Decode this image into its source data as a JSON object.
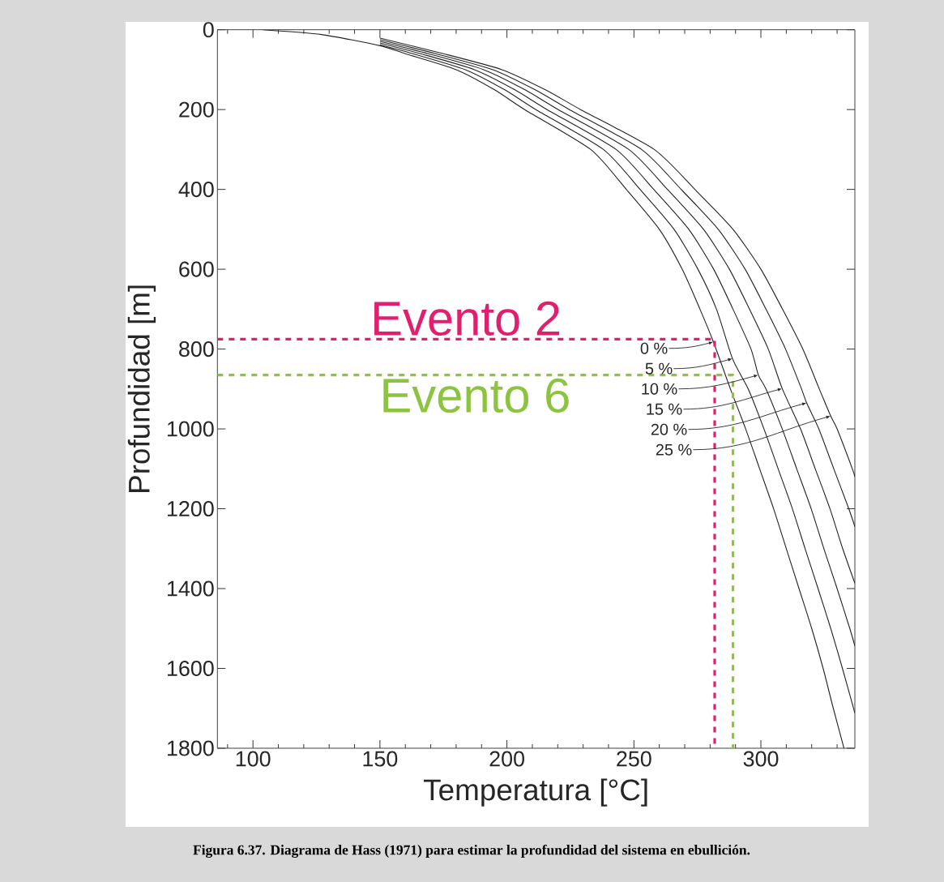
{
  "chart_data": {
    "type": "line",
    "xlabel": "Temperatura [°C]",
    "ylabel": "Profundidad [m]",
    "xlim": [
      86,
      337
    ],
    "ylim": [
      1800,
      0
    ],
    "xticks": [
      {
        "value": 90,
        "label": null
      },
      100,
      {
        "value": 110,
        "label": null
      },
      {
        "value": 120,
        "label": null
      },
      {
        "value": 130,
        "label": null
      },
      {
        "value": 140,
        "label": null
      },
      150,
      {
        "value": 160,
        "label": null
      },
      {
        "value": 170,
        "label": null
      },
      {
        "value": 180,
        "label": null
      },
      {
        "value": 190,
        "label": null
      },
      200,
      {
        "value": 210,
        "label": null
      },
      {
        "value": 220,
        "label": null
      },
      {
        "value": 230,
        "label": null
      },
      {
        "value": 240,
        "label": null
      },
      250,
      {
        "value": 260,
        "label": null
      },
      {
        "value": 270,
        "label": null
      },
      {
        "value": 280,
        "label": null
      },
      {
        "value": 290,
        "label": null
      },
      300,
      {
        "value": 310,
        "label": null
      },
      {
        "value": 320,
        "label": null
      },
      {
        "value": 330,
        "label": null
      }
    ],
    "yticks": [
      0,
      200,
      400,
      600,
      800,
      1000,
      1200,
      1400,
      1600,
      1800
    ],
    "grid": false,
    "series": [
      {
        "color": "#222222",
        "x": [
          104,
          127,
          150,
          160,
          180,
          195,
          207,
          233,
          247,
          260,
          269,
          276,
          281.3,
          288,
          294,
          299.5,
          305,
          310,
          315,
          320,
          324.5,
          328.5,
          332.7
        ],
        "values": [
          0,
          12,
          40,
          60,
          100,
          150,
          200,
          300,
          400,
          500,
          600,
          700,
          782,
          900,
          1000,
          1100,
          1200,
          1300,
          1400,
          1500,
          1600,
          1700,
          1800
        ]
      },
      {
        "color": "#222222",
        "x": [
          150,
          163,
          183.6,
          199,
          211.4,
          238,
          252.4,
          265.8,
          275.2,
          282.5,
          288.8,
          295,
          301.2,
          306.8,
          312.4,
          317.4,
          322.5,
          327.5,
          332.1,
          337
        ],
        "values": [
          37,
          60,
          100,
          150,
          200,
          300,
          400,
          500,
          600,
          700,
          824,
          900,
          1000,
          1100,
          1200,
          1300,
          1400,
          1500,
          1600,
          1712
        ]
      },
      {
        "color": "#222222",
        "x": [
          150,
          166,
          187.2,
          203,
          215.8,
          243,
          257.8,
          271.6,
          281.4,
          289,
          296.1,
          299.0,
          302,
          308.4,
          314.1,
          319.8,
          324.8,
          330,
          335,
          337
        ],
        "values": [
          33,
          60,
          100,
          150,
          200,
          300,
          400,
          500,
          600,
          700,
          800,
          865,
          900,
          1000,
          1100,
          1200,
          1300,
          1400,
          1500,
          1544
        ]
      },
      {
        "color": "#222222",
        "x": [
          150,
          169,
          190.8,
          207,
          220.2,
          248,
          263.2,
          277.4,
          287.6,
          295.5,
          302.9,
          308.4,
          315.6,
          321.4,
          327.2,
          332.2,
          337
        ],
        "values": [
          29,
          60,
          100,
          150,
          200,
          300,
          400,
          500,
          600,
          700,
          800,
          899,
          1000,
          1100,
          1200,
          1300,
          1387
        ]
      },
      {
        "color": "#222222",
        "x": [
          150,
          172,
          194.4,
          211,
          224.6,
          253,
          268.6,
          283.2,
          293.8,
          302,
          309.7,
          316,
          318.0,
          322.8,
          328.7,
          334.6,
          337
        ],
        "values": [
          25,
          60,
          100,
          150,
          200,
          300,
          400,
          500,
          600,
          700,
          800,
          900,
          935,
          1000,
          1100,
          1200,
          1245
        ]
      },
      {
        "color": "#222222",
        "x": [
          150,
          175,
          198,
          215,
          229,
          258,
          274,
          289,
          300,
          308.5,
          316.5,
          323,
          327.5,
          330,
          336,
          337
        ],
        "values": [
          21,
          60,
          100,
          150,
          200,
          300,
          400,
          500,
          600,
          700,
          800,
          900,
          968,
          1000,
          1100,
          1120
        ]
      },
      {
        "name": "Evento 2",
        "color": "#e0206e",
        "line_style": "dashed",
        "x": [
          86,
          281.8,
          281.8
        ],
        "values": [
          775,
          775,
          1800
        ]
      },
      {
        "name": "Evento 6",
        "color": "#8cc43f",
        "line_style": "dashed",
        "x": [
          86,
          289,
          289
        ],
        "values": [
          865,
          865,
          1800
        ]
      }
    ],
    "annotations": [
      "Figura 6.37. Diagrama de Hass (1971) para estimar la profundidad del sistema en ebullición.",
      {
        "text": "0 %",
        "x": 281.3,
        "y": 782
      },
      {
        "text": "5 %",
        "x": 288.8,
        "y": 824
      },
      {
        "text": "10 %",
        "x": 299.0,
        "y": 865
      },
      {
        "text": "15 %",
        "x": 308.4,
        "y": 899
      },
      {
        "text": "20 %",
        "x": 318.0,
        "y": 935
      },
      {
        "text": "25 %",
        "x": 327.5,
        "y": 968
      }
    ]
  }
}
